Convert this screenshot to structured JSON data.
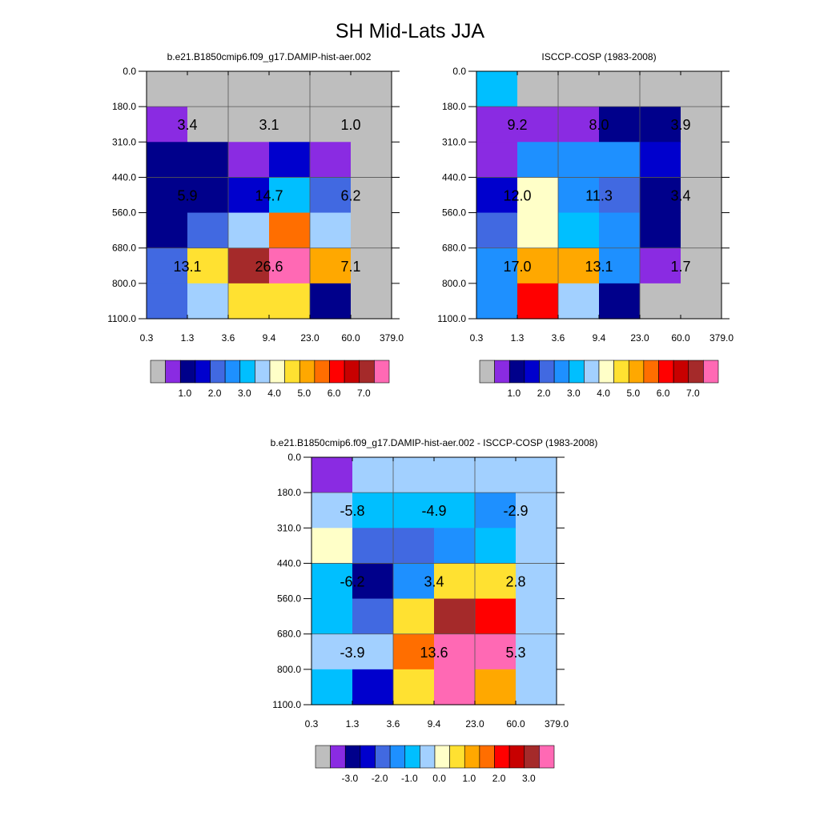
{
  "title": "SH Mid-Lats JJA",
  "colors": {
    "absolute_palette": [
      "#bebebe",
      "#8a2be2",
      "#00008b",
      "#0000cd",
      "#4169e1",
      "#1e90ff",
      "#00bfff",
      "#a2d0ff",
      "#ffffc8",
      "#ffe131",
      "#ffa800",
      "#ff6e00",
      "#ff0000",
      "#c80000",
      "#a52a2a",
      "#ff69b4"
    ],
    "difference_palette": [
      "#bebebe",
      "#8a2be2",
      "#00008b",
      "#0000cd",
      "#4169e1",
      "#1e90ff",
      "#00bfff",
      "#a2d0ff",
      "#ffffc8",
      "#ffe131",
      "#ffa800",
      "#ff6e00",
      "#ff0000",
      "#c80000",
      "#a52a2a",
      "#ff69b4"
    ]
  },
  "chart_data": [
    {
      "type": "heatmap",
      "title": "b.e21.B1850cmip6.f09_g17.DAMIP-hist-aer.002",
      "x_ticks": [
        "0.3",
        "1.3",
        "3.6",
        "9.4",
        "23.0",
        "60.0",
        "379.0"
      ],
      "y_ticks": [
        "0.0",
        "180.0",
        "310.0",
        "440.0",
        "560.0",
        "680.0",
        "800.0",
        "1100.0"
      ],
      "cells": [
        [
          0,
          0,
          0,
          0,
          0,
          0
        ],
        [
          1,
          0,
          0,
          0,
          0,
          0
        ],
        [
          2,
          2,
          1,
          3,
          1,
          0
        ],
        [
          2,
          2,
          3,
          6,
          4,
          0
        ],
        [
          2,
          4,
          7,
          11,
          7,
          0
        ],
        [
          4,
          9,
          14,
          15,
          10,
          0
        ],
        [
          4,
          7,
          9,
          9,
          2,
          0
        ]
      ],
      "labels": [
        {
          "row": 1,
          "col": 1,
          "text": "3.4"
        },
        {
          "row": 1,
          "col": 3,
          "text": "3.1"
        },
        {
          "row": 1,
          "col": 5,
          "text": "1.0"
        },
        {
          "row": 3,
          "col": 1,
          "text": "5.9"
        },
        {
          "row": 3,
          "col": 3,
          "text": "14.7"
        },
        {
          "row": 3,
          "col": 5,
          "text": "6.2"
        },
        {
          "row": 5,
          "col": 1,
          "text": "13.1"
        },
        {
          "row": 5,
          "col": 3,
          "text": "26.6"
        },
        {
          "row": 5,
          "col": 5,
          "text": "7.1"
        }
      ],
      "legend_labels": [
        "1.0",
        "2.0",
        "3.0",
        "4.0",
        "5.0",
        "6.0",
        "7.0"
      ],
      "palette": "absolute_palette"
    },
    {
      "type": "heatmap",
      "title": "ISCCP-COSP (1983-2008)",
      "x_ticks": [
        "0.3",
        "1.3",
        "3.6",
        "9.4",
        "23.0",
        "60.0",
        "379.0"
      ],
      "y_ticks": [
        "0.0",
        "180.0",
        "310.0",
        "440.0",
        "560.0",
        "680.0",
        "800.0",
        "1100.0"
      ],
      "cells": [
        [
          6,
          0,
          0,
          0,
          0,
          0
        ],
        [
          1,
          1,
          1,
          2,
          2,
          0
        ],
        [
          1,
          5,
          5,
          5,
          3,
          0
        ],
        [
          3,
          8,
          5,
          4,
          2,
          0
        ],
        [
          4,
          8,
          6,
          5,
          2,
          0
        ],
        [
          5,
          10,
          10,
          5,
          1,
          0
        ],
        [
          5,
          12,
          7,
          2,
          0,
          0
        ]
      ],
      "labels": [
        {
          "row": 1,
          "col": 1,
          "text": "9.2"
        },
        {
          "row": 1,
          "col": 3,
          "text": "8.0"
        },
        {
          "row": 1,
          "col": 5,
          "text": "3.9"
        },
        {
          "row": 3,
          "col": 1,
          "text": "12.0"
        },
        {
          "row": 3,
          "col": 3,
          "text": "11.3"
        },
        {
          "row": 3,
          "col": 5,
          "text": "3.4"
        },
        {
          "row": 5,
          "col": 1,
          "text": "17.0"
        },
        {
          "row": 5,
          "col": 3,
          "text": "13.1"
        },
        {
          "row": 5,
          "col": 5,
          "text": "1.7"
        }
      ],
      "legend_labels": [
        "1.0",
        "2.0",
        "3.0",
        "4.0",
        "5.0",
        "6.0",
        "7.0"
      ],
      "palette": "absolute_palette"
    },
    {
      "type": "heatmap",
      "title": "b.e21.B1850cmip6.f09_g17.DAMIP-hist-aer.002 - ISCCP-COSP (1983-2008)",
      "x_ticks": [
        "0.3",
        "1.3",
        "3.6",
        "9.4",
        "23.0",
        "60.0",
        "379.0"
      ],
      "y_ticks": [
        "0.0",
        "180.0",
        "310.0",
        "440.0",
        "560.0",
        "680.0",
        "800.0",
        "1100.0"
      ],
      "cells": [
        [
          1,
          7,
          7,
          7,
          7,
          7
        ],
        [
          7,
          6,
          6,
          6,
          5,
          7
        ],
        [
          8,
          4,
          4,
          5,
          6,
          7
        ],
        [
          6,
          2,
          5,
          9,
          9,
          7
        ],
        [
          6,
          4,
          9,
          14,
          12,
          7
        ],
        [
          7,
          7,
          11,
          15,
          15,
          7
        ],
        [
          6,
          3,
          9,
          15,
          10,
          7
        ]
      ],
      "labels": [
        {
          "row": 1,
          "col": 1,
          "text": "-5.8"
        },
        {
          "row": 1,
          "col": 3,
          "text": "-4.9"
        },
        {
          "row": 1,
          "col": 5,
          "text": "-2.9"
        },
        {
          "row": 3,
          "col": 1,
          "text": "-6.2"
        },
        {
          "row": 3,
          "col": 3,
          "text": "3.4"
        },
        {
          "row": 3,
          "col": 5,
          "text": "2.8"
        },
        {
          "row": 5,
          "col": 1,
          "text": "-3.9"
        },
        {
          "row": 5,
          "col": 3,
          "text": "13.6"
        },
        {
          "row": 5,
          "col": 5,
          "text": "5.3"
        }
      ],
      "legend_labels": [
        "-3.0",
        "-2.0",
        "-1.0",
        "0.0",
        "1.0",
        "2.0",
        "3.0"
      ],
      "palette": "difference_palette"
    }
  ]
}
